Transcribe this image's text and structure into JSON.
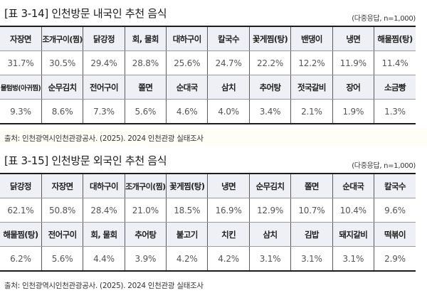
{
  "tables": [
    {
      "title": "[표 3-14] 인천방문 내국인 추천 음식",
      "note": "(다중응답, n=1,000)",
      "rows": [
        {
          "type": "header",
          "cells": [
            "자장면",
            "조개구이(찜)",
            "닭강정",
            "회, 물회",
            "대하구이",
            "칼국수",
            "꽃게찜(탕)",
            "밴댕이",
            "냉면",
            "해물찜(탕)"
          ]
        },
        {
          "type": "value",
          "cells": [
            "31.7%",
            "30.5%",
            "29.4%",
            "28.8%",
            "25.6%",
            "24.7%",
            "22.2%",
            "12.2%",
            "11.9%",
            "11.4%"
          ]
        },
        {
          "type": "header",
          "cells": [
            "물텀벙(아귀찜)",
            "순무김치",
            "전어구이",
            "쫄면",
            "순대국",
            "삼치",
            "추어탕",
            "젓국갈비",
            "장어",
            "소금빵"
          ]
        },
        {
          "type": "value",
          "cells": [
            "9.3%",
            "8.6%",
            "7.3%",
            "5.6%",
            "4.6%",
            "4.0%",
            "3.4%",
            "2.1%",
            "1.9%",
            "1.3%"
          ]
        }
      ],
      "source": "출처: 인천광역시인천관광공사. (2025). 2024 인천관광 실태조사"
    },
    {
      "title": "[표 3-15] 인천방문 외국인 추천 음식",
      "note": "(다중응답, n=1,000)",
      "rows": [
        {
          "type": "header",
          "cells": [
            "닭강정",
            "자장면",
            "대하구이",
            "조개구이(찜)",
            "꽃게찜(탕)",
            "냉면",
            "순무김치",
            "쫄면",
            "순대국",
            "칼국수"
          ]
        },
        {
          "type": "value",
          "cells": [
            "62.1%",
            "50.8%",
            "28.4%",
            "21.0%",
            "18.5%",
            "16.9%",
            "12.9%",
            "10.7%",
            "10.4%",
            "9.6%"
          ]
        },
        {
          "type": "header",
          "cells": [
            "해물찜(탕)",
            "전어구이",
            "회, 물회",
            "추어탕",
            "불고기",
            "치킨",
            "삼치",
            "김밥",
            "돼지갈비",
            "떡볶이"
          ]
        },
        {
          "type": "value",
          "cells": [
            "6.2%",
            "5.6%",
            "4.4%",
            "3.9%",
            "4.2%",
            "4.2%",
            "3.1%",
            "3.1%",
            "3.1%",
            "2.9%"
          ]
        }
      ],
      "source": "출처: 인천광역시인천관광공사. (2025). 2024 인천관광 실태조사"
    }
  ],
  "colors": {
    "header_bg": "#eef0f6",
    "rule": "#1c1c1c",
    "value_text": "#555555"
  }
}
